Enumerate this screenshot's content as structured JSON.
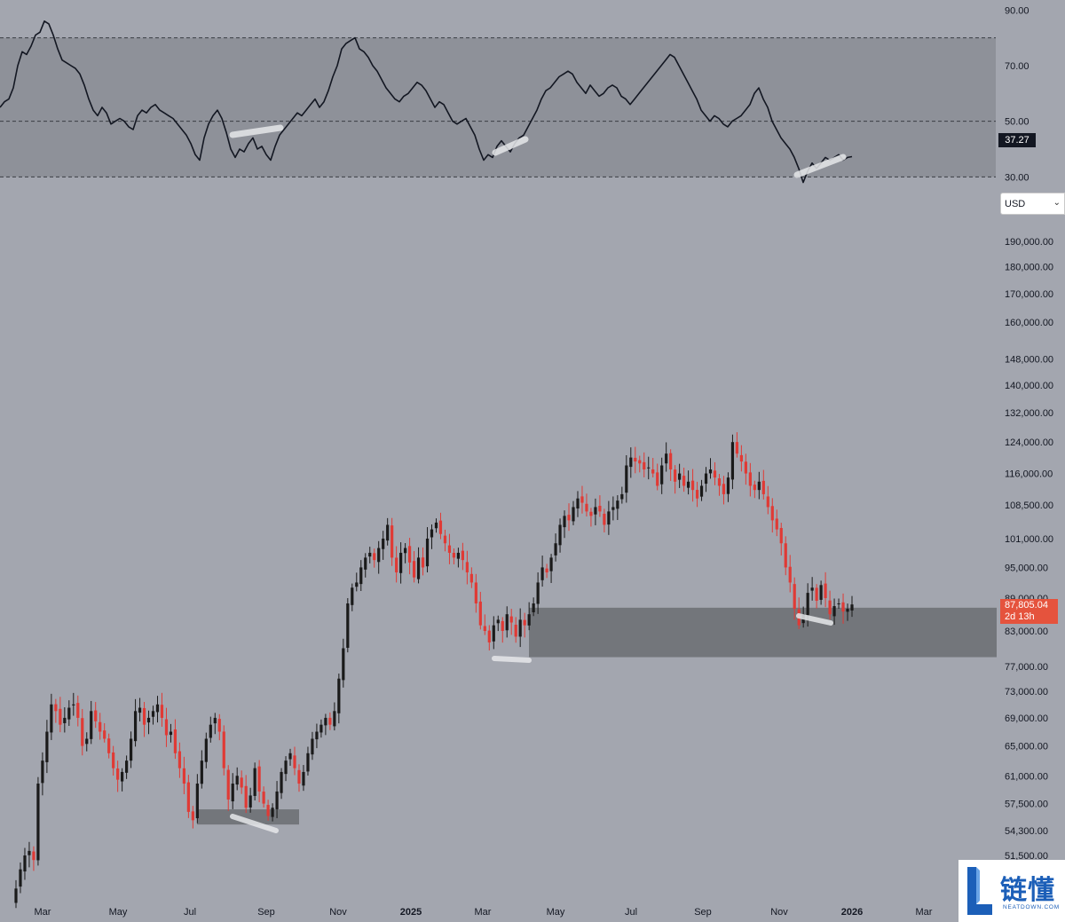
{
  "colors": {
    "background": "#a3a6af",
    "rsi_band": "#8e9199",
    "rsi_line": "#131722",
    "candle_up": "#1a1a1a",
    "candle_down": "#e03a35",
    "support_zone": "#6b6d72",
    "highlight": "#e6e7ea",
    "price_badge": "#e5533d",
    "logo_blue": "#1c5fb8"
  },
  "currency_select": {
    "value": "USD"
  },
  "rsi_badge": "37.27",
  "price_badge": {
    "price": "87,805.04",
    "countdown": "2d 13h"
  },
  "logo": {
    "chinese": "链懂",
    "english": "NEATDOWN.COM"
  },
  "chart_data": [
    {
      "type": "line",
      "series": [
        {
          "values": [
            55,
            57,
            58,
            62,
            70,
            75,
            74,
            77,
            81,
            82,
            86,
            85,
            81,
            76,
            72,
            71,
            70,
            69,
            67,
            63,
            58,
            54,
            52,
            55,
            53,
            49,
            50,
            51,
            50,
            48,
            47,
            52,
            54,
            53,
            55,
            56,
            54,
            53,
            52,
            51,
            49,
            47,
            45,
            42,
            38,
            36,
            44,
            49,
            52,
            54,
            51,
            46,
            40,
            37,
            40,
            39,
            42,
            44,
            40,
            41,
            38,
            36,
            41,
            45,
            47,
            49,
            51,
            53,
            52,
            54,
            56,
            58,
            55,
            57,
            61,
            66,
            70,
            76,
            78,
            79,
            80,
            76,
            75,
            73,
            70,
            68,
            65,
            62,
            60,
            58,
            57,
            59,
            60,
            62,
            64,
            63,
            61,
            58,
            55,
            57,
            56,
            53,
            50,
            49,
            50,
            51,
            48,
            45,
            40,
            36,
            38,
            37,
            41,
            43,
            41,
            39,
            42,
            44,
            45,
            48,
            51,
            54,
            58,
            61,
            62,
            64,
            66,
            67,
            68,
            67,
            64,
            62,
            60,
            63,
            61,
            59,
            60,
            62,
            63,
            62,
            59,
            58,
            56,
            58,
            60,
            62,
            64,
            66,
            68,
            70,
            72,
            74,
            73,
            70,
            67,
            64,
            61,
            58,
            54,
            52,
            50,
            52,
            51,
            49,
            48,
            50,
            51,
            52,
            54,
            56,
            60,
            62,
            58,
            55,
            50,
            47,
            44,
            42,
            40,
            37,
            33,
            28,
            32,
            35,
            33,
            35,
            37,
            36,
            37,
            38,
            36,
            37,
            37.27
          ],
          "highlights": [
            {
              "from": "Aug 2024",
              "to": "Sep 2024"
            },
            {
              "from": "Mar 2025",
              "to": "Apr 2025"
            },
            {
              "from": "Nov 2025",
              "to": "Dec 2025"
            }
          ]
        }
      ],
      "ylim": [
        25,
        92
      ],
      "y_ticks": [
        "90.00",
        "70.00",
        "50.00",
        "30.00"
      ],
      "levels": [
        80,
        50,
        30
      ],
      "band": [
        30,
        80
      ],
      "last_value": 37.27
    },
    {
      "type": "candlestick",
      "x_ticks": [
        "Mar",
        "May",
        "Jul",
        "Sep",
        "Nov",
        "2025",
        "Mar",
        "May",
        "Jul",
        "Sep",
        "Nov",
        "2026",
        "Mar"
      ],
      "y_ticks": [
        "190,000.00",
        "180,000.00",
        "170,000.00",
        "160,000.00",
        "148,000.00",
        "140,000.00",
        "132,000.00",
        "124,000.00",
        "116,000.00",
        "108,500.00",
        "101,000.00",
        "95,000.00",
        "89,000.00",
        "83,000.00",
        "77,000.00",
        "73,000.00",
        "69,000.00",
        "65,000.00",
        "61,000.00",
        "57,500.00",
        "54,300.00",
        "51,500.00"
      ],
      "scale": "log",
      "ylim": [
        48000,
        205000
      ],
      "closes": [
        48000,
        50000,
        51500,
        52000,
        51000,
        60000,
        63000,
        67000,
        71000,
        70000,
        68000,
        69000,
        70500,
        71000,
        69000,
        65000,
        66000,
        70000,
        68500,
        67000,
        66000,
        64000,
        62000,
        60500,
        61500,
        63000,
        66000,
        70000,
        70500,
        68000,
        69000,
        70000,
        71000,
        69000,
        66500,
        67000,
        64000,
        62000,
        60000,
        56500,
        55500,
        60000,
        63000,
        66000,
        68000,
        69000,
        67000,
        62000,
        58000,
        60000,
        61000,
        59500,
        57000,
        58500,
        62000,
        59000,
        57500,
        56000,
        57000,
        59000,
        61500,
        63000,
        64000,
        62000,
        60000,
        61500,
        64000,
        66000,
        67000,
        68000,
        69000,
        68000,
        70000,
        75000,
        80000,
        88000,
        91000,
        92000,
        95000,
        97000,
        98000,
        96500,
        99000,
        101000,
        104000,
        97000,
        94000,
        98000,
        99000,
        96000,
        93000,
        97000,
        95000,
        101000,
        103000,
        104500,
        102000,
        100000,
        98000,
        97000,
        98000,
        96500,
        94000,
        92000,
        88000,
        84000,
        83000,
        81000,
        84000,
        85000,
        83000,
        86000,
        84500,
        82000,
        85000,
        84000,
        86000,
        88000,
        92000,
        95000,
        94000,
        97000,
        100000,
        104000,
        106000,
        105000,
        108000,
        110000,
        109000,
        107000,
        106000,
        108000,
        107000,
        104000,
        107000,
        108000,
        109500,
        111000,
        118000,
        120000,
        119000,
        118500,
        117000,
        117500,
        116000,
        113000,
        118000,
        121000,
        117000,
        114000,
        116000,
        113000,
        114000,
        112000,
        110000,
        113000,
        116000,
        117000,
        115000,
        113000,
        111000,
        115000,
        124000,
        121000,
        119000,
        116000,
        113000,
        112000,
        114000,
        111000,
        108000,
        105000,
        103000,
        100000,
        95000,
        92000,
        87000,
        84000,
        86000,
        90000,
        91000,
        88500,
        91500,
        89000,
        86000,
        87500,
        88000,
        86500,
        87000,
        87805
      ],
      "support_zones": [
        {
          "price_range": [
            78500,
            87200
          ],
          "from": "Mar 2025",
          "to": "Feb 2026"
        },
        {
          "price_range": [
            55000,
            56800
          ],
          "from": "Jul 2024",
          "to": "Sep 2024"
        }
      ],
      "highlights": [
        {
          "from": "Aug 2024",
          "to": "Sep 2024"
        },
        {
          "from": "Mar 2025",
          "to": "Apr 2025"
        },
        {
          "from": "Nov 2025",
          "to": "Dec 2025"
        }
      ],
      "last_price": 87805.04
    }
  ]
}
